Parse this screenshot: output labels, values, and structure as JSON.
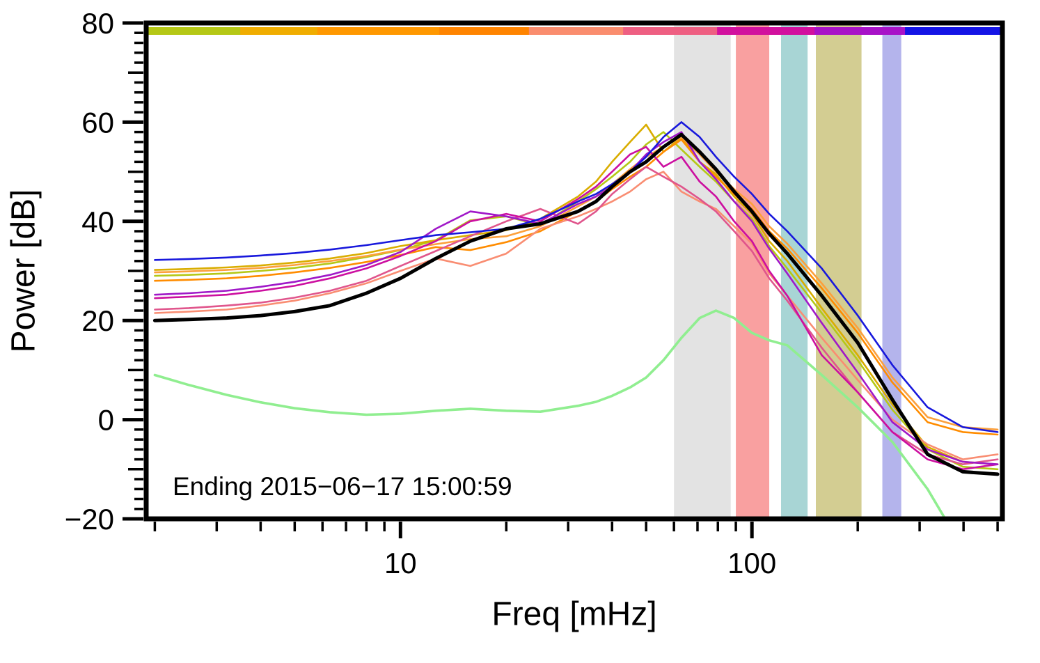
{
  "chart_data": {
    "type": "line",
    "title": "",
    "xlabel": "Freq [mHz]",
    "ylabel": "Power [dB]",
    "annotation": "Ending 2015−06−17 15:00:59",
    "x_scale": "log",
    "xlim": [
      1.89,
      516
    ],
    "ylim": [
      -20,
      80
    ],
    "grid": false,
    "legend": "none",
    "x_major_ticks": [
      {
        "v": 10,
        "label": "10"
      },
      {
        "v": 100,
        "label": "100"
      }
    ],
    "x_minor_ticks": [
      2,
      3,
      4,
      5,
      6,
      7,
      8,
      9,
      20,
      30,
      40,
      50,
      60,
      70,
      80,
      90,
      200,
      300,
      400,
      500
    ],
    "y_major_ticks": [
      {
        "v": -20,
        "label": "−20"
      },
      {
        "v": 0,
        "label": "0"
      },
      {
        "v": 20,
        "label": "20"
      },
      {
        "v": 40,
        "label": "40"
      },
      {
        "v": 60,
        "label": "60"
      },
      {
        "v": 80,
        "label": "80"
      }
    ],
    "y_minor_step": 2,
    "bands": [
      {
        "name": "band-gray",
        "from": 60,
        "to": 87,
        "color": "#e3e3e3"
      },
      {
        "name": "band-red",
        "from": 90,
        "to": 112,
        "color": "#f9a0a0"
      },
      {
        "name": "band-teal",
        "from": 121,
        "to": 144,
        "color": "#a8d5d5"
      },
      {
        "name": "band-khaki",
        "from": 152,
        "to": 205,
        "color": "#d3cd92"
      },
      {
        "name": "band-lavender",
        "from": 235,
        "to": 266,
        "color": "#b4b4ec"
      }
    ],
    "colorbar_segments": [
      {
        "from": 1.89,
        "to": 3.5,
        "color": "#b5c816"
      },
      {
        "from": 3.5,
        "to": 5.8,
        "color": "#f0ad00"
      },
      {
        "from": 5.8,
        "to": 12.9,
        "color": "#ff9800"
      },
      {
        "from": 12.9,
        "to": 23.2,
        "color": "#ff8400"
      },
      {
        "from": 23.2,
        "to": 43,
        "color": "#fa8d6e"
      },
      {
        "from": 43,
        "to": 79.6,
        "color": "#ee5f82"
      },
      {
        "from": 79.6,
        "to": 150.7,
        "color": "#d2109e"
      },
      {
        "from": 150.7,
        "to": 272.6,
        "color": "#a812c8"
      },
      {
        "from": 272.6,
        "to": 516,
        "color": "#1414e6"
      }
    ],
    "x": [
      2,
      2.5,
      3.2,
      4,
      5,
      6.3,
      8,
      10,
      12.6,
      15.8,
      20,
      25,
      32,
      36,
      40,
      45,
      50,
      56,
      63,
      71,
      79,
      89,
      100,
      112,
      126,
      158,
      200,
      251,
      316,
      398,
      500
    ],
    "series": [
      {
        "name": "yellow-green",
        "color": "#b5c816",
        "width": 2.6,
        "values": [
          29,
          29.2,
          29.5,
          30,
          30.6,
          31.5,
          32.8,
          34.2,
          36.2,
          40.2,
          41,
          39.2,
          44,
          46.5,
          49,
          52,
          55.5,
          58,
          54.5,
          51,
          48,
          44,
          40.5,
          35,
          30.5,
          21.5,
          12,
          2,
          -6,
          -9.5,
          -10
        ]
      },
      {
        "name": "gold",
        "color": "#d9ad00",
        "width": 2.6,
        "values": [
          30.2,
          30.4,
          30.7,
          31.1,
          31.7,
          32.5,
          33.6,
          35,
          36.2,
          37.2,
          38.2,
          40.5,
          45,
          48,
          52,
          56,
          59.5,
          54,
          57,
          52,
          49.5,
          45,
          41.5,
          36,
          32,
          22.5,
          13,
          3,
          -5.5,
          -8.5,
          -9
        ]
      },
      {
        "name": "orange-light",
        "color": "#fca03c",
        "width": 2.6,
        "values": [
          29.7,
          29.9,
          30.2,
          30.6,
          31.2,
          32,
          33,
          34.3,
          35.4,
          36.4,
          37,
          39,
          43,
          45,
          47.5,
          50.5,
          53,
          55,
          57,
          53.5,
          50,
          46.5,
          43.5,
          39,
          35.5,
          27.5,
          18.5,
          8.5,
          0.5,
          -1.5,
          -2
        ]
      },
      {
        "name": "orange",
        "color": "#ff8c00",
        "width": 2.6,
        "values": [
          28,
          28.2,
          28.5,
          29,
          29.7,
          30.6,
          31.8,
          33.2,
          34.8,
          34.2,
          35.8,
          38,
          42,
          44,
          46.5,
          49,
          51,
          54,
          56.5,
          52,
          49,
          45.5,
          42.5,
          38,
          34.5,
          26.5,
          17.5,
          7.5,
          -0.5,
          -2.5,
          -3
        ]
      },
      {
        "name": "salmon",
        "color": "#f98d72",
        "width": 2.6,
        "values": [
          21.5,
          21.8,
          22.2,
          23,
          24,
          25.5,
          27.5,
          30,
          32.5,
          31,
          33.5,
          38.5,
          41,
          42.5,
          44,
          46,
          48.5,
          50,
          46,
          44,
          42.5,
          39,
          35.5,
          29.5,
          25,
          16.5,
          8,
          0,
          -5,
          -8,
          -7
        ]
      },
      {
        "name": "crimson",
        "color": "#e0558c",
        "width": 2.6,
        "values": [
          22.2,
          22.5,
          23,
          23.6,
          24.6,
          26,
          28,
          31,
          34,
          37,
          40,
          42.5,
          39.5,
          42,
          45.5,
          48.5,
          51,
          49,
          47,
          44.5,
          42,
          38,
          34,
          28.5,
          24,
          14.5,
          5.5,
          -2.5,
          -7,
          -9,
          -8
        ]
      },
      {
        "name": "magenta",
        "color": "#cc0fa0",
        "width": 2.6,
        "values": [
          24.5,
          24.8,
          25.2,
          26,
          27,
          28.5,
          30.5,
          33,
          36,
          40,
          41.5,
          40,
          44.5,
          47,
          50,
          53.5,
          55,
          51,
          53,
          48,
          45,
          40,
          36,
          30,
          25,
          13,
          5.5,
          -2.5,
          -8,
          -10,
          -9
        ]
      },
      {
        "name": "purple",
        "color": "#a018c8",
        "width": 2.6,
        "values": [
          25.2,
          25.5,
          26,
          26.8,
          27.8,
          29.2,
          31.2,
          33.8,
          38.5,
          42,
          41,
          39.5,
          43.5,
          45,
          47,
          50,
          53.5,
          56,
          58,
          52,
          48.5,
          44,
          40,
          34.5,
          29.5,
          19.5,
          9.5,
          -0.5,
          -6,
          -8.5,
          -9
        ]
      },
      {
        "name": "blue",
        "color": "#1818dc",
        "width": 2.6,
        "values": [
          32.2,
          32.4,
          32.7,
          33.1,
          33.6,
          34.3,
          35.2,
          36.2,
          37.2,
          37.8,
          38.5,
          40.5,
          44,
          45.5,
          47.5,
          50,
          53,
          57,
          60,
          57,
          53,
          49,
          45.5,
          41.5,
          38,
          30.5,
          21,
          11,
          2.5,
          -1.5,
          -2.5
        ]
      },
      {
        "name": "light-green",
        "color": "#90ee90",
        "width": 3.6,
        "values": [
          9,
          7,
          5,
          3.5,
          2.3,
          1.5,
          1,
          1.2,
          1.8,
          2.2,
          1.8,
          1.6,
          2.8,
          3.6,
          4.8,
          6.5,
          8.5,
          12,
          16.5,
          20.5,
          22,
          20.5,
          17.5,
          16,
          15,
          9,
          2.5,
          -4.5,
          -14,
          -26,
          -38
        ]
      },
      {
        "name": "mean-black",
        "color": "#000000",
        "width": 5,
        "values": [
          20,
          20.2,
          20.5,
          21,
          21.8,
          23,
          25.5,
          28.5,
          32.5,
          36,
          38.5,
          39.5,
          42,
          44,
          47,
          50,
          52,
          55,
          57.5,
          54,
          50.5,
          46,
          42,
          37.5,
          33.5,
          25,
          15.5,
          4,
          -7,
          -10.5,
          -11
        ]
      }
    ]
  }
}
